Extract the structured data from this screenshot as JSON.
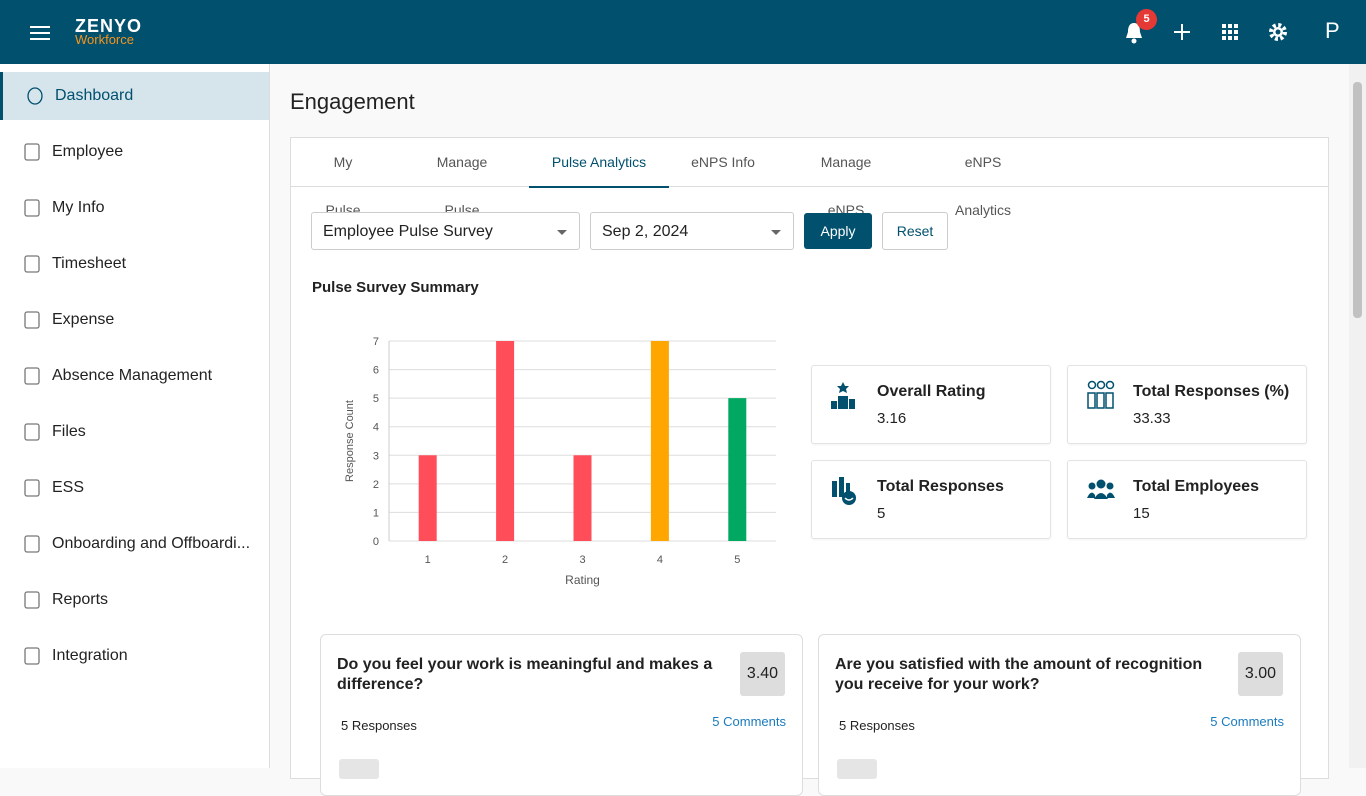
{
  "header": {
    "logo_top": "ZENYO",
    "logo_bottom": "Workforce",
    "notifications": 5,
    "avatar": "P"
  },
  "sidebar": {
    "items": [
      "Dashboard",
      "Employee",
      "My Info",
      "Timesheet",
      "Expense",
      "Absence Management",
      "Files",
      "ESS",
      "Onboarding and Offboardi...",
      "Reports",
      "Integration"
    ]
  },
  "page": {
    "title": "Engagement"
  },
  "tabs": [
    "My Pulse",
    "Manage Pulse",
    "Pulse Analytics",
    "eNPS Info",
    "Manage eNPS",
    "eNPS Analytics"
  ],
  "filters": {
    "survey": "Employee Pulse Survey",
    "date": "Sep 2, 2024",
    "apply": "Apply",
    "reset": "Reset"
  },
  "summary": {
    "title": "Pulse Survey Summary"
  },
  "chart_data": {
    "type": "bar",
    "x_label": "Rating",
    "y_label": "Response Count",
    "categories": [
      "1",
      "2",
      "3",
      "4",
      "5"
    ],
    "values": [
      3,
      7,
      3,
      7,
      5
    ],
    "colors": [
      "#ff4d5a",
      "#ff4d5a",
      "#ff4d5a",
      "#ffa600",
      "#00a862"
    ],
    "ylim": [
      0,
      7
    ],
    "yticks": [
      0,
      1,
      2,
      3,
      4,
      5,
      6,
      7
    ],
    "grid": true
  },
  "stats": [
    {
      "label": "Overall Rating",
      "value": 3.16
    },
    {
      "label": "Total Responses (%)",
      "value": 33.33
    },
    {
      "label": "Total Responses",
      "value": 5
    },
    {
      "label": "Total Employees",
      "value": 15
    }
  ],
  "questions": [
    {
      "text": "Do you feel your work is meaningful and makes a difference?",
      "score": "3.40",
      "responses": "5 Responses",
      "comments": "5 Comments"
    },
    {
      "text": "Are you satisfied with the amount of recognition you receive for your work?",
      "score": "3.00",
      "responses": "5 Responses",
      "comments": "5 Comments"
    }
  ]
}
